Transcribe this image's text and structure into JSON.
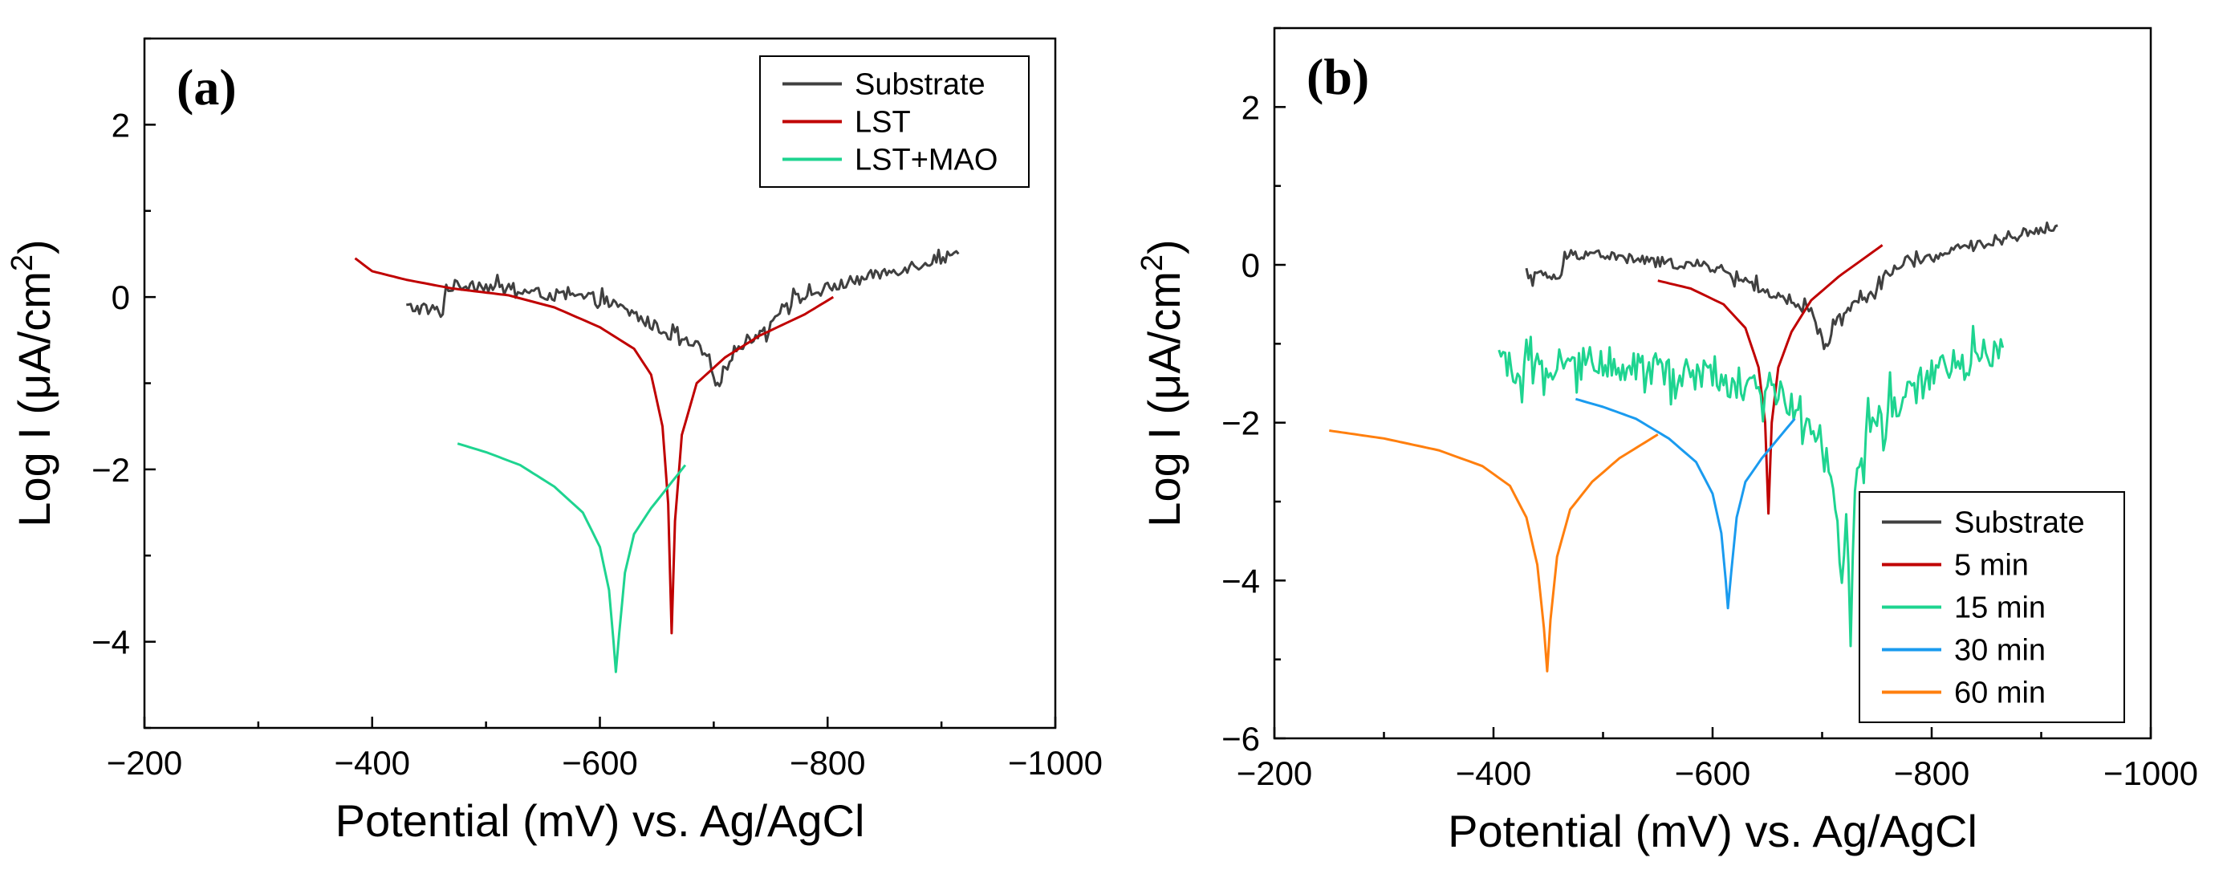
{
  "chart_data": [
    {
      "type": "line",
      "panel_label": "(a)",
      "xlabel": "Potential (mV) vs. Ag/AgCl",
      "ylabel_prefix": "Log I (μA/cm",
      "ylabel_sup": "2",
      "ylabel_suffix": ")",
      "xlim": [
        -200,
        -1000
      ],
      "ylim": [
        -5,
        3
      ],
      "x_ticks": [
        -200,
        -400,
        -600,
        -800,
        -1000
      ],
      "x_tick_labels": [
        "−200",
        "−400",
        "−600",
        "−800",
        "−1000"
      ],
      "y_ticks": [
        -4,
        -2,
        0,
        2
      ],
      "y_tick_labels": [
        "−4",
        "−2",
        "0",
        "2"
      ],
      "legend_position": "top-right",
      "series": [
        {
          "name": "Substrate",
          "color": "#404040",
          "noise": 0.07,
          "points": [
            [
              -430,
              -0.12
            ],
            [
              -455,
              -0.15
            ],
            [
              -462,
              -0.18
            ],
            [
              -465,
              0.12
            ],
            [
              -490,
              0.15
            ],
            [
              -520,
              0.08
            ],
            [
              -560,
              0.02
            ],
            [
              -600,
              -0.02
            ],
            [
              -630,
              -0.2
            ],
            [
              -650,
              -0.35
            ],
            [
              -670,
              -0.5
            ],
            [
              -690,
              -0.6
            ],
            [
              -700,
              -0.95
            ],
            [
              -705,
              -1.1
            ],
            [
              -710,
              -0.75
            ],
            [
              -720,
              -0.6
            ],
            [
              -735,
              -0.45
            ],
            [
              -750,
              -0.35
            ],
            [
              -760,
              -0.08
            ],
            [
              -800,
              0.1
            ],
            [
              -840,
              0.25
            ],
            [
              -880,
              0.38
            ],
            [
              -915,
              0.5
            ]
          ]
        },
        {
          "name": "LST",
          "color": "#c00000",
          "noise": 0,
          "points": [
            [
              -385,
              0.45
            ],
            [
              -400,
              0.3
            ],
            [
              -430,
              0.2
            ],
            [
              -470,
              0.1
            ],
            [
              -520,
              0.02
            ],
            [
              -560,
              -0.12
            ],
            [
              -600,
              -0.35
            ],
            [
              -630,
              -0.6
            ],
            [
              -645,
              -0.9
            ],
            [
              -655,
              -1.5
            ],
            [
              -660,
              -2.4
            ],
            [
              -663,
              -3.9
            ],
            [
              -666,
              -2.6
            ],
            [
              -672,
              -1.6
            ],
            [
              -685,
              -1.0
            ],
            [
              -710,
              -0.7
            ],
            [
              -740,
              -0.45
            ],
            [
              -780,
              -0.2
            ],
            [
              -805,
              0.0
            ]
          ]
        },
        {
          "name": "LST+MAO",
          "color": "#1ed490",
          "noise": 0,
          "points": [
            [
              -475,
              -1.7
            ],
            [
              -500,
              -1.8
            ],
            [
              -530,
              -1.95
            ],
            [
              -560,
              -2.2
            ],
            [
              -585,
              -2.5
            ],
            [
              -600,
              -2.9
            ],
            [
              -608,
              -3.4
            ],
            [
              -612,
              -4.0
            ],
            [
              -614,
              -4.35
            ],
            [
              -617,
              -3.9
            ],
            [
              -622,
              -3.2
            ],
            [
              -630,
              -2.75
            ],
            [
              -645,
              -2.45
            ],
            [
              -660,
              -2.2
            ],
            [
              -675,
              -1.95
            ]
          ]
        }
      ]
    },
    {
      "type": "line",
      "panel_label": "(b)",
      "xlabel": "Potential (mV) vs. Ag/AgCl",
      "ylabel_prefix": "Log I (μA/cm",
      "ylabel_sup": "2",
      "ylabel_suffix": ")",
      "xlim": [
        -200,
        -1000
      ],
      "ylim": [
        -6,
        3
      ],
      "x_ticks": [
        -200,
        -400,
        -600,
        -800,
        -1000
      ],
      "x_tick_labels": [
        "−200",
        "−400",
        "−600",
        "−800",
        "−1000"
      ],
      "y_ticks": [
        -6,
        -4,
        -2,
        0,
        2
      ],
      "y_tick_labels": [
        "−6",
        "−4",
        "−2",
        "0",
        "2"
      ],
      "legend_position": "bottom-right",
      "series": [
        {
          "name": "Substrate",
          "color": "#404040",
          "noise": 0.07,
          "points": [
            [
              -430,
              -0.12
            ],
            [
              -455,
              -0.15
            ],
            [
              -462,
              -0.18
            ],
            [
              -465,
              0.12
            ],
            [
              -490,
              0.15
            ],
            [
              -520,
              0.08
            ],
            [
              -560,
              0.02
            ],
            [
              -600,
              -0.02
            ],
            [
              -630,
              -0.2
            ],
            [
              -650,
              -0.35
            ],
            [
              -670,
              -0.5
            ],
            [
              -690,
              -0.6
            ],
            [
              -700,
              -0.95
            ],
            [
              -705,
              -1.1
            ],
            [
              -710,
              -0.75
            ],
            [
              -720,
              -0.6
            ],
            [
              -735,
              -0.45
            ],
            [
              -750,
              -0.35
            ],
            [
              -760,
              -0.08
            ],
            [
              -800,
              0.1
            ],
            [
              -840,
              0.25
            ],
            [
              -880,
              0.38
            ],
            [
              -915,
              0.5
            ]
          ]
        },
        {
          "name": "5 min",
          "color": "#c00000",
          "noise": 0,
          "points": [
            [
              -550,
              -0.2
            ],
            [
              -580,
              -0.3
            ],
            [
              -610,
              -0.5
            ],
            [
              -630,
              -0.8
            ],
            [
              -642,
              -1.3
            ],
            [
              -648,
              -2.0
            ],
            [
              -651,
              -3.15
            ],
            [
              -654,
              -2.0
            ],
            [
              -660,
              -1.3
            ],
            [
              -672,
              -0.85
            ],
            [
              -690,
              -0.45
            ],
            [
              -715,
              -0.15
            ],
            [
              -740,
              0.1
            ],
            [
              -755,
              0.25
            ]
          ]
        },
        {
          "name": "15 min",
          "color": "#1ed490",
          "noise": 0.22,
          "points": [
            [
              -405,
              -1.2
            ],
            [
              -420,
              -1.3
            ],
            [
              -450,
              -1.25
            ],
            [
              -500,
              -1.25
            ],
            [
              -550,
              -1.3
            ],
            [
              -600,
              -1.45
            ],
            [
              -650,
              -1.55
            ],
            [
              -680,
              -1.8
            ],
            [
              -700,
              -2.3
            ],
            [
              -712,
              -3.0
            ],
            [
              -718,
              -4.0
            ],
            [
              -722,
              -3.2
            ],
            [
              -726,
              -4.6
            ],
            [
              -730,
              -3.0
            ],
            [
              -740,
              -2.2
            ],
            [
              -760,
              -1.8
            ],
            [
              -780,
              -1.6
            ],
            [
              -800,
              -1.4
            ],
            [
              -830,
              -1.25
            ],
            [
              -865,
              -1.05
            ]
          ]
        },
        {
          "name": "30 min",
          "color": "#1a9bef",
          "noise": 0,
          "points": [
            [
              -475,
              -1.7
            ],
            [
              -500,
              -1.8
            ],
            [
              -530,
              -1.95
            ],
            [
              -560,
              -2.2
            ],
            [
              -585,
              -2.5
            ],
            [
              -600,
              -2.9
            ],
            [
              -608,
              -3.4
            ],
            [
              -612,
              -4.0
            ],
            [
              -614,
              -4.35
            ],
            [
              -617,
              -3.9
            ],
            [
              -622,
              -3.2
            ],
            [
              -630,
              -2.75
            ],
            [
              -645,
              -2.45
            ],
            [
              -660,
              -2.2
            ],
            [
              -675,
              -1.95
            ]
          ]
        },
        {
          "name": "60 min",
          "color": "#ff7f0e",
          "noise": 0,
          "points": [
            [
              -250,
              -2.1
            ],
            [
              -300,
              -2.2
            ],
            [
              -350,
              -2.35
            ],
            [
              -390,
              -2.55
            ],
            [
              -415,
              -2.8
            ],
            [
              -430,
              -3.2
            ],
            [
              -440,
              -3.8
            ],
            [
              -446,
              -4.6
            ],
            [
              -449,
              -5.15
            ],
            [
              -452,
              -4.5
            ],
            [
              -458,
              -3.7
            ],
            [
              -470,
              -3.1
            ],
            [
              -490,
              -2.75
            ],
            [
              -515,
              -2.45
            ],
            [
              -550,
              -2.15
            ]
          ]
        }
      ]
    }
  ]
}
